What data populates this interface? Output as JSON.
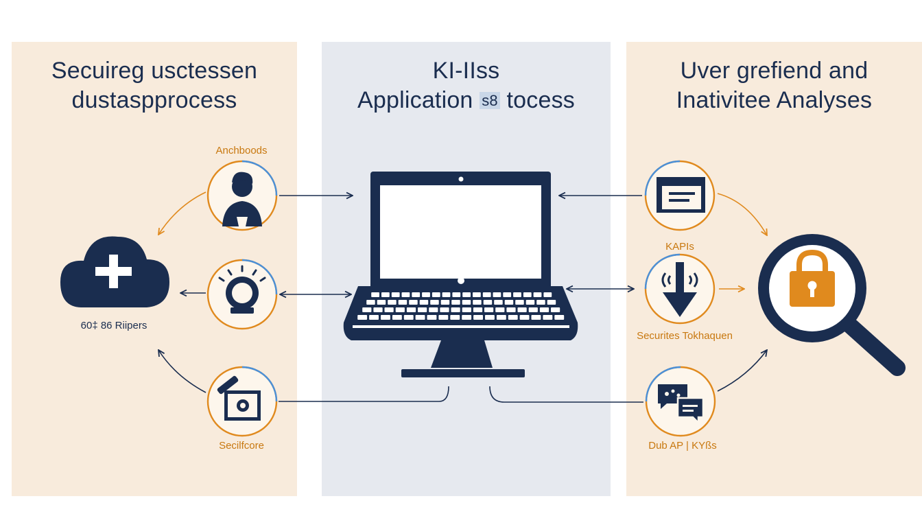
{
  "panels": {
    "left": {
      "title_line1": "Secuireg usctessen",
      "title_line2": "dustaspprocess",
      "labels": {
        "top_icon": "Anchboods",
        "cloud": "60‡ 86 Riipers",
        "bottom_icon": "Secilfcore"
      }
    },
    "center": {
      "title_line1": "KI-IIss",
      "title_line2_a": "Application",
      "title_line2_tag": "s8",
      "title_line2_b": "tocess"
    },
    "right": {
      "title_line1": "Uver grefiend and",
      "title_line2": "Inativitee Analyses",
      "labels": {
        "middle_top": "KAPIs",
        "middle_bottom": "Securites Tokhaquen",
        "bottom": "Dub AP | KYßs"
      }
    }
  },
  "icons": {
    "left": [
      "person-icon",
      "lightbulb-icon",
      "secure-toolbox-icon",
      "cloud-plus-icon"
    ],
    "center": [
      "laptop-icon"
    ],
    "right": [
      "document-window-icon",
      "download-arrow-icon",
      "chat-bubbles-icon",
      "magnifier-lock-icon"
    ]
  },
  "colors": {
    "navy": "#1a2d4f",
    "orange": "#e08a1e",
    "blue": "#4a90d9",
    "panel_warm": "#f8ebdc",
    "panel_cool": "#e6e9ef"
  }
}
